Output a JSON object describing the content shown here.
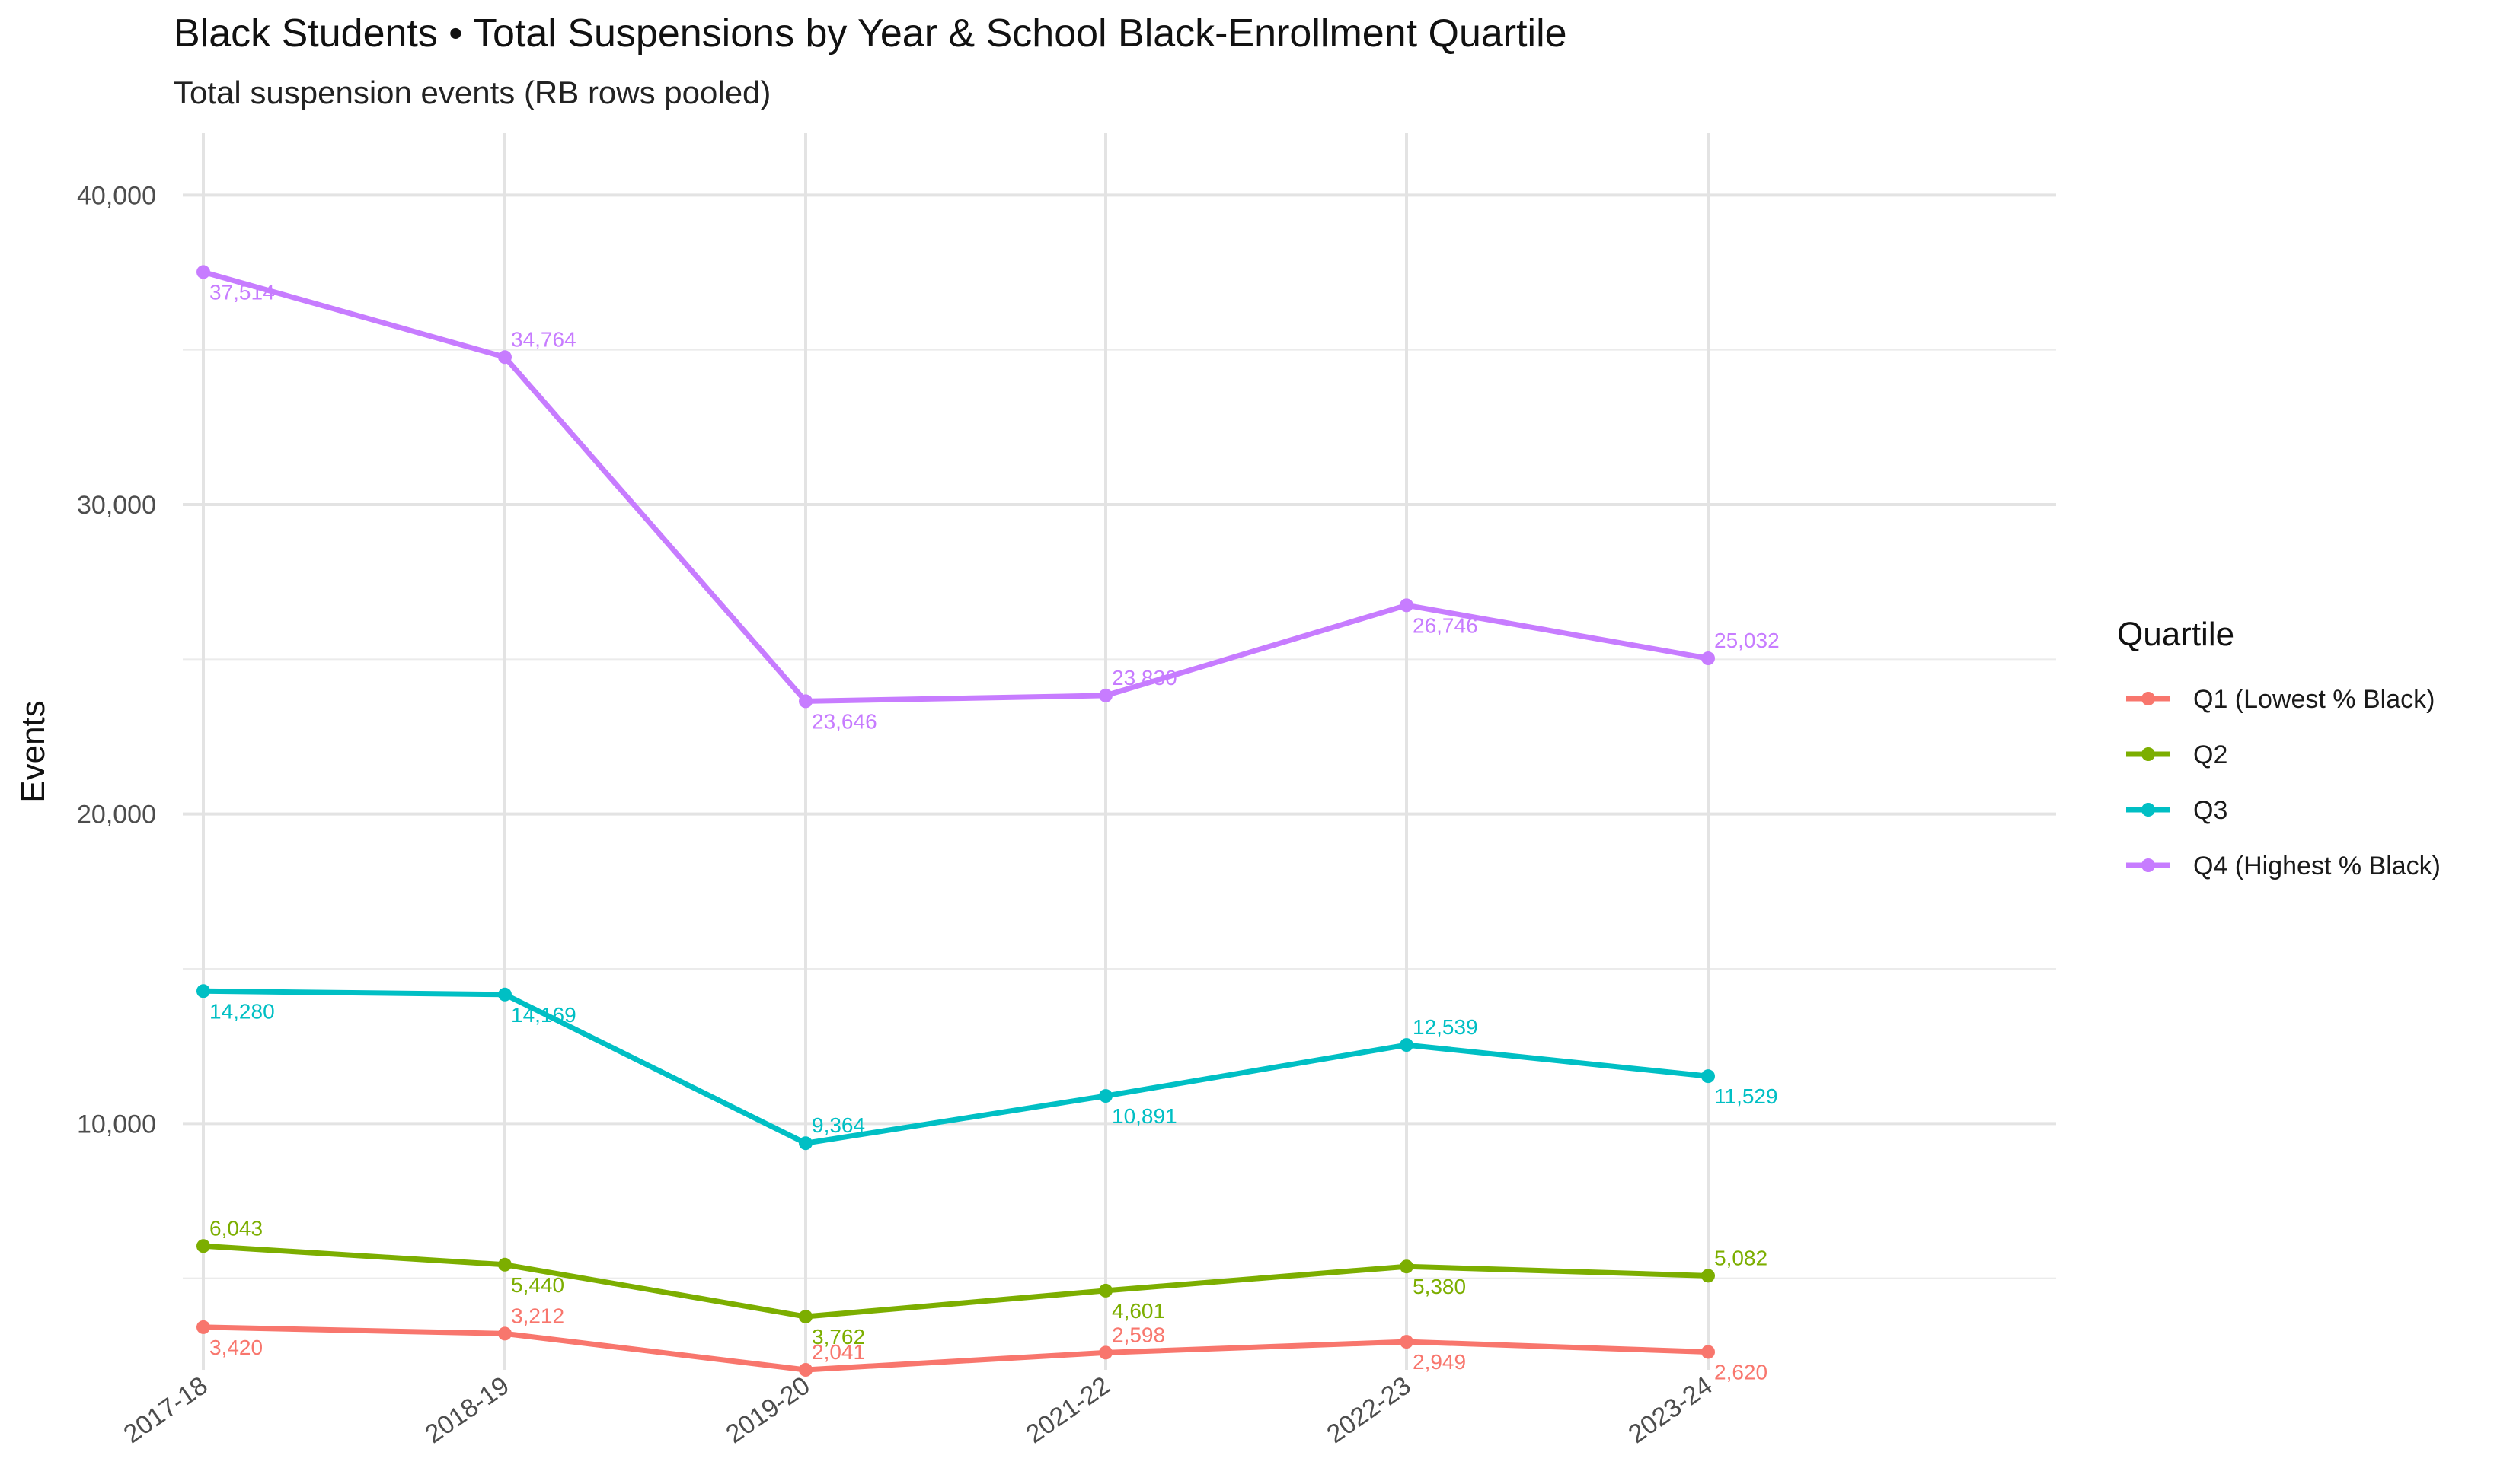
{
  "chart_data": {
    "type": "line",
    "title": "Black Students • Total Suspensions by Year & School Black-Enrollment Quartile",
    "subtitle": "Total suspension events (RB rows pooled)",
    "xlabel": "",
    "ylabel": "Events",
    "categories": [
      "2017-18",
      "2018-19",
      "2019-20",
      "2021-22",
      "2022-23",
      "2023-24"
    ],
    "ylim": [
      2041,
      42000
    ],
    "yticks": [
      10000,
      20000,
      30000,
      40000
    ],
    "ytick_labels": [
      "10,000",
      "20,000",
      "30,000",
      "40,000"
    ],
    "grid": true,
    "legend": {
      "title": "Quartile",
      "placement": "right"
    },
    "series": [
      {
        "name": "Q1 (Lowest % Black)",
        "color": "#F8766D",
        "values": [
          3420,
          3212,
          2041,
          2598,
          2949,
          2620
        ],
        "labels": [
          "3,420",
          "3,212",
          "2,041",
          "2,598",
          "2,949",
          "2,620"
        ]
      },
      {
        "name": "Q2",
        "color": "#7CAE00",
        "values": [
          6043,
          5440,
          3762,
          4601,
          5380,
          5082
        ],
        "labels": [
          "6,043",
          "5,440",
          "3,762",
          "4,601",
          "5,380",
          "5,082"
        ]
      },
      {
        "name": "Q3",
        "color": "#00BFC4",
        "values": [
          14280,
          14169,
          9364,
          10891,
          12539,
          11529
        ],
        "labels": [
          "14,280",
          "14,169",
          "9,364",
          "10,891",
          "12,539",
          "11,529"
        ]
      },
      {
        "name": "Q4 (Highest % Black)",
        "color": "#C77CFF",
        "values": [
          37514,
          34764,
          23646,
          23830,
          26746,
          25032
        ],
        "labels": [
          "37,514",
          "34,764",
          "23,646",
          "23,830",
          "26,746",
          "25,032"
        ]
      }
    ]
  }
}
